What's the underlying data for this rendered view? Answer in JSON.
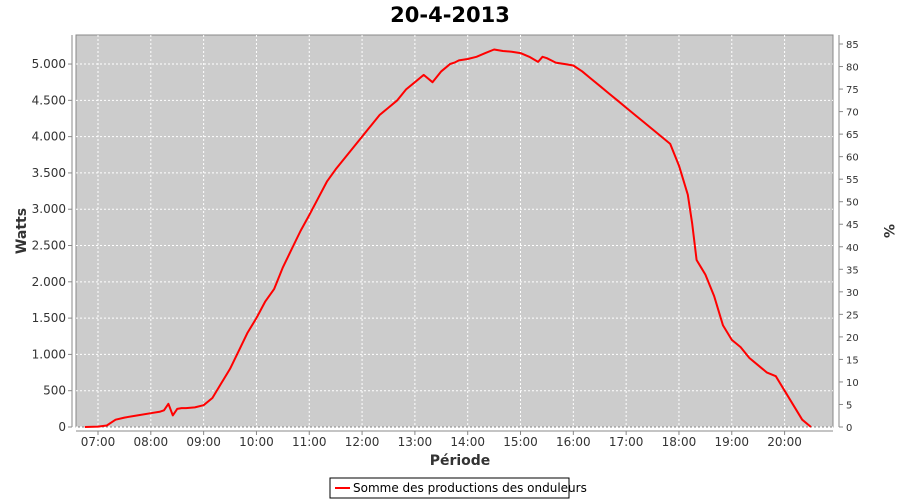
{
  "chart_data": {
    "type": "line",
    "title": "20-4-2013",
    "xlabel": "Période",
    "ylabel": "Watts",
    "y2label": "%",
    "ylim": [
      0,
      5400
    ],
    "y2lim": [
      0,
      87
    ],
    "y_ticks": [
      0,
      500,
      1000,
      1500,
      2000,
      2500,
      3000,
      3500,
      4000,
      4500,
      5000
    ],
    "y_tick_labels": [
      "0",
      "500",
      "1.000",
      "1.500",
      "2.000",
      "2.500",
      "3.000",
      "3.500",
      "4.000",
      "4.500",
      "5.000"
    ],
    "y2_ticks": [
      0,
      5,
      10,
      15,
      20,
      25,
      30,
      35,
      40,
      45,
      50,
      55,
      60,
      65,
      70,
      75,
      80,
      85
    ],
    "x_ticks": [
      "07:00",
      "08:00",
      "09:00",
      "10:00",
      "11:00",
      "12:00",
      "13:00",
      "14:00",
      "15:00",
      "16:00",
      "17:00",
      "18:00",
      "19:00",
      "20:00"
    ],
    "xlim": [
      "06:35",
      "20:55"
    ],
    "grid": true,
    "legend_position": "bottom",
    "colors": {
      "plot_background": "#cccccc",
      "grid": "#ffffff",
      "series": "#ff0000"
    },
    "series": [
      {
        "name": "Somme des productions des onduleurs",
        "color": "#ff0000",
        "x": [
          "06:45",
          "07:00",
          "07:10",
          "07:15",
          "07:20",
          "07:30",
          "07:45",
          "08:00",
          "08:10",
          "08:15",
          "08:20",
          "08:25",
          "08:30",
          "08:35",
          "08:40",
          "08:50",
          "09:00",
          "09:10",
          "09:20",
          "09:30",
          "09:40",
          "09:50",
          "10:00",
          "10:10",
          "10:20",
          "10:30",
          "10:40",
          "10:50",
          "11:00",
          "11:10",
          "11:20",
          "11:30",
          "11:40",
          "11:50",
          "12:00",
          "12:10",
          "12:20",
          "12:30",
          "12:40",
          "12:50",
          "13:00",
          "13:10",
          "13:20",
          "13:30",
          "13:35",
          "13:40",
          "13:45",
          "13:50",
          "14:00",
          "14:10",
          "14:20",
          "14:30",
          "14:40",
          "14:50",
          "15:00",
          "15:10",
          "15:20",
          "15:25",
          "15:30",
          "15:35",
          "15:40",
          "15:50",
          "16:00",
          "16:10",
          "16:20",
          "16:30",
          "16:40",
          "16:50",
          "17:00",
          "17:10",
          "17:20",
          "17:30",
          "17:40",
          "17:50",
          "18:00",
          "18:10",
          "18:15",
          "18:20",
          "18:25",
          "18:30",
          "18:40",
          "18:50",
          "18:55",
          "19:00",
          "19:10",
          "19:20",
          "19:30",
          "19:40",
          "19:50",
          "20:00",
          "20:10",
          "20:20",
          "20:30"
        ],
        "values": [
          0,
          5,
          20,
          60,
          100,
          130,
          160,
          190,
          210,
          230,
          320,
          160,
          250,
          260,
          260,
          270,
          300,
          400,
          600,
          800,
          1050,
          1300,
          1500,
          1730,
          1900,
          2200,
          2450,
          2700,
          2920,
          3150,
          3380,
          3550,
          3700,
          3850,
          4000,
          4150,
          4300,
          4400,
          4500,
          4650,
          4750,
          4850,
          4750,
          4900,
          4950,
          5000,
          5020,
          5050,
          5070,
          5100,
          5150,
          5200,
          5180,
          5170,
          5150,
          5100,
          5030,
          5100,
          5080,
          5050,
          5020,
          5000,
          4980,
          4900,
          4800,
          4700,
          4600,
          4500,
          4400,
          4300,
          4200,
          4100,
          4000,
          3900,
          3600,
          3200,
          2800,
          2300,
          2200,
          2100,
          1800,
          1400,
          1300,
          1200,
          1100,
          950,
          850,
          750,
          700,
          500,
          300,
          100,
          0
        ]
      }
    ]
  }
}
